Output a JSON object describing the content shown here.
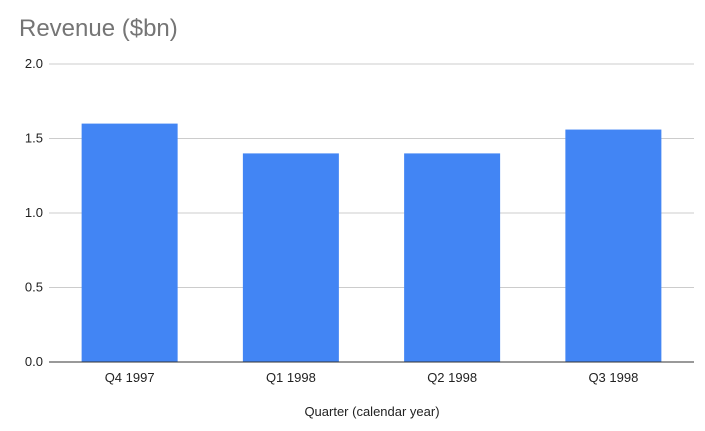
{
  "chart_data": {
    "type": "bar",
    "title": "Revenue ($bn)",
    "xlabel": "Quarter (calendar year)",
    "ylabel": "",
    "categories": [
      "Q4 1997",
      "Q1 1998",
      "Q2 1998",
      "Q3 1998"
    ],
    "values": [
      1.6,
      1.4,
      1.4,
      1.56
    ],
    "ylim": [
      0,
      2.0
    ],
    "yticks": [
      "0.0",
      "0.5",
      "1.0",
      "1.5",
      "2.0"
    ],
    "grid": true,
    "legend": "none",
    "bar_color": "#4285f4"
  }
}
